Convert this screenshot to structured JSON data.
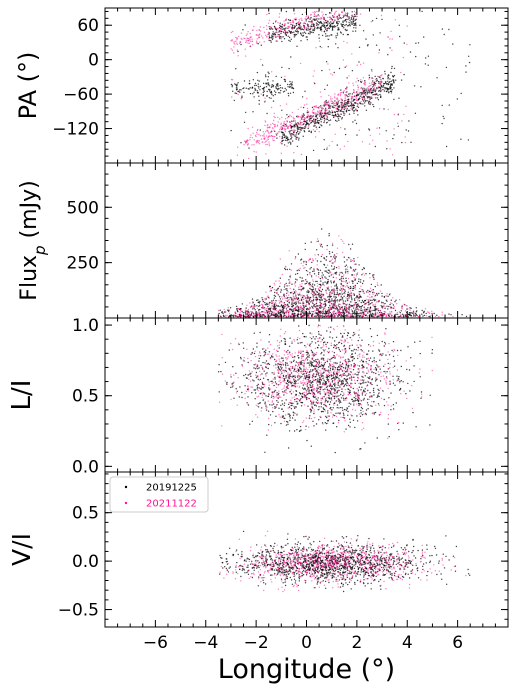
{
  "chart_data": {
    "type": "scatter",
    "x_label": "Longitude (°)",
    "x_range": [
      -8,
      8
    ],
    "x_ticks": [
      -6,
      -4,
      -2,
      0,
      2,
      4,
      6
    ],
    "x_tick_labels": [
      "−6",
      "−4",
      "−2",
      "0",
      "2",
      "4",
      "6"
    ],
    "legend": {
      "placement": "upper-left of bottom panel",
      "entries": [
        "20191225",
        "20211122"
      ]
    },
    "series": [
      {
        "name": "20191225",
        "color": "#000000"
      },
      {
        "name": "20211122",
        "color": "#ff1493"
      }
    ],
    "panels": [
      {
        "id": "pa",
        "ylabel_main": "PA (°)",
        "y_range": [
          -180,
          90
        ],
        "y_ticks": [
          60,
          0,
          -60,
          -120
        ],
        "y_tick_labels": [
          "60",
          "0",
          "−60",
          "−120"
        ],
        "distribution": "pa"
      },
      {
        "id": "flux",
        "ylabel_main": "Flux",
        "ylabel_sub": "p",
        "ylabel_unit": " (mJy)",
        "y_range": [
          0,
          700
        ],
        "y_ticks": [
          250,
          500
        ],
        "y_tick_labels": [
          "250",
          "500"
        ],
        "distribution": "flux"
      },
      {
        "id": "li",
        "ylabel_main": "L/I",
        "y_range": [
          -0.04,
          1.05
        ],
        "y_ticks": [
          0.0,
          0.5,
          1.0
        ],
        "y_tick_labels": [
          "0.0",
          "0.5",
          "1.0"
        ],
        "distribution": "li"
      },
      {
        "id": "vi",
        "ylabel_main": "V/I",
        "y_range": [
          -0.68,
          0.92
        ],
        "y_ticks": [
          -0.5,
          0.0,
          0.5
        ],
        "y_tick_labels": [
          "−0.5",
          "0.0",
          "0.5"
        ],
        "distribution": "vi",
        "has_legend": true
      }
    ]
  }
}
